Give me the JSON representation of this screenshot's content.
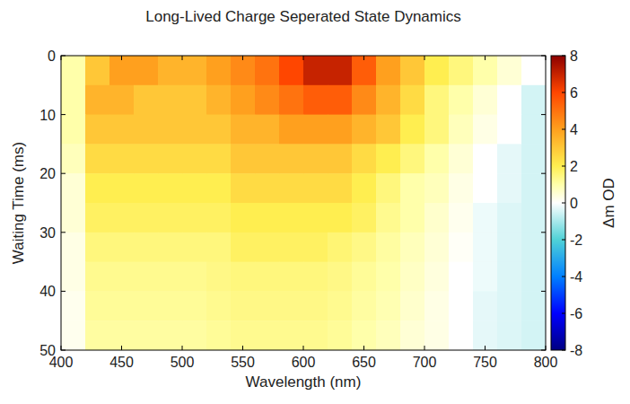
{
  "chart_data": {
    "type": "heatmap",
    "title": "Long-Lived Charge Seperated State Dynamics",
    "x_label": "Wavelength (nm)",
    "y_label": "Waiting Time (ms)",
    "x": [
      410,
      430,
      450,
      470,
      490,
      510,
      530,
      550,
      570,
      590,
      610,
      630,
      650,
      670,
      690,
      710,
      730,
      750,
      770,
      790
    ],
    "y": [
      2.5,
      7.5,
      12.5,
      17.5,
      22.5,
      27.5,
      32.5,
      37.5,
      42.5,
      47.5
    ],
    "values": [
      [
        1,
        3,
        4,
        4,
        3.5,
        3.5,
        4,
        4.5,
        5,
        6,
        7,
        7,
        5.5,
        4,
        3,
        2,
        1.5,
        1,
        0.5,
        0
      ],
      [
        1,
        3.5,
        3.5,
        3,
        3,
        3,
        3.5,
        4,
        4.5,
        5,
        5.5,
        5.5,
        4.5,
        3.5,
        2.5,
        1.5,
        1,
        0.5,
        0,
        -0.5
      ],
      [
        1,
        3,
        3,
        3,
        3,
        3,
        3,
        3.5,
        3.5,
        4,
        4,
        4,
        3.5,
        3,
        2,
        1.5,
        0.8,
        0.3,
        0,
        -0.5
      ],
      [
        0.8,
        2.5,
        2.5,
        2.5,
        2.5,
        2.5,
        2.5,
        3,
        3,
        3,
        3,
        3,
        2.5,
        2,
        1.5,
        1,
        0.5,
        0,
        -0.3,
        -0.5
      ],
      [
        0.5,
        2,
        2,
        2,
        2,
        2,
        2,
        2.5,
        2.5,
        2.5,
        2.5,
        2.5,
        2,
        1.5,
        1,
        0.8,
        0.3,
        0,
        -0.3,
        -0.5
      ],
      [
        0.5,
        1.8,
        1.8,
        1.8,
        1.8,
        1.8,
        1.8,
        2,
        2,
        2,
        2,
        2,
        1.8,
        1.3,
        1,
        0.6,
        0.2,
        -0.2,
        -0.4,
        -0.5
      ],
      [
        0.3,
        1.5,
        1.5,
        1.5,
        1.5,
        1.5,
        1.5,
        1.8,
        1.8,
        1.8,
        1.8,
        1.6,
        1.4,
        1.1,
        0.8,
        0.5,
        0.1,
        -0.2,
        -0.4,
        -0.5
      ],
      [
        0.3,
        1.3,
        1.3,
        1.3,
        1.3,
        1.3,
        1.4,
        1.5,
        1.5,
        1.5,
        1.5,
        1.4,
        1.2,
        1,
        0.7,
        0.4,
        0,
        -0.2,
        -0.4,
        -0.5
      ],
      [
        0.2,
        1.2,
        1.2,
        1.2,
        1.2,
        1.2,
        1.3,
        1.4,
        1.4,
        1.4,
        1.4,
        1.3,
        1.1,
        0.9,
        0.6,
        0.3,
        0,
        -0.3,
        -0.4,
        -0.5
      ],
      [
        0.2,
        1.1,
        1.1,
        1.1,
        1.1,
        1.1,
        1.2,
        1.3,
        1.3,
        1.3,
        1.3,
        1.2,
        1,
        0.8,
        0.5,
        0.3,
        0,
        -0.3,
        -0.4,
        -0.5
      ]
    ],
    "xlim": [
      400,
      800
    ],
    "xticks": [
      400,
      450,
      500,
      550,
      600,
      650,
      700,
      750,
      800
    ],
    "ylim": [
      0,
      50
    ],
    "yticks": [
      0,
      10,
      20,
      30,
      40,
      50
    ],
    "colorbar_label": "Δm OD",
    "colorbar_range": [
      -8,
      8
    ],
    "colorbar_ticks": [
      8,
      6,
      4,
      2,
      0,
      -2,
      -4,
      -6,
      -8
    ]
  }
}
